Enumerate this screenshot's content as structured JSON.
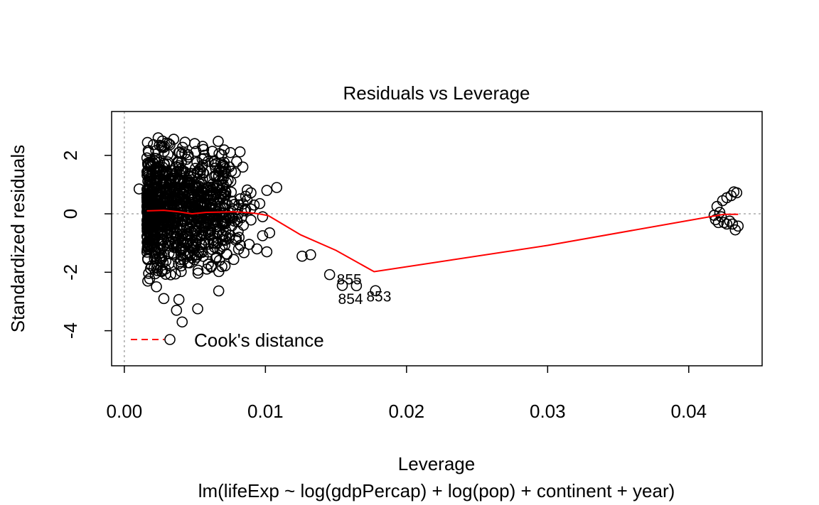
{
  "chart_data": {
    "type": "scatter",
    "title": "Residuals vs Leverage",
    "xlabel": "Leverage",
    "subtitle": "lm(lifeExp ~ log(gdpPercap) + log(pop) + continent + year)",
    "ylabel": "Standardized residuals",
    "xlim": [
      -0.0009,
      0.0452
    ],
    "ylim": [
      -5.2,
      3.5
    ],
    "x_ticks": [
      "0.00",
      "0.01",
      "0.02",
      "0.03",
      "0.04"
    ],
    "x_tick_values": [
      0,
      0.01,
      0.02,
      0.03,
      0.04
    ],
    "y_ticks": [
      "-4",
      "-2",
      "0",
      "2"
    ],
    "y_tick_values": [
      -4,
      -2,
      0,
      2
    ],
    "reference_lines": {
      "h": 0,
      "v": 0,
      "color": "#a8a8a8",
      "style": "dotted"
    },
    "smoother": {
      "color": "#ff0000",
      "x": [
        0.0016,
        0.0028,
        0.0038,
        0.0048,
        0.0058,
        0.0068,
        0.0078,
        0.0088,
        0.0095,
        0.0102,
        0.0125,
        0.015,
        0.0177,
        0.03,
        0.0415,
        0.0425,
        0.0435
      ],
      "y": [
        0.1,
        0.12,
        0.07,
        0.0,
        0.05,
        0.06,
        0.07,
        0.04,
        0.0,
        -0.06,
        -0.72,
        -1.25,
        -1.98,
        -1.08,
        -0.1,
        -0.02,
        -0.02
      ]
    },
    "labeled_points": [
      {
        "label": "855",
        "x": 0.01455,
        "y": -2.08
      },
      {
        "label": "854",
        "x": 0.01545,
        "y": -2.45
      },
      {
        "label": "853",
        "x": 0.01645,
        "y": -2.46
      }
    ],
    "extra_points": [
      {
        "x": 0.00105,
        "y": 0.85
      },
      {
        "x": 0.0101,
        "y": 0.8
      },
      {
        "x": 0.0108,
        "y": 0.9
      },
      {
        "x": 0.0092,
        "y": 0.3
      },
      {
        "x": 0.0096,
        "y": 0.35
      },
      {
        "x": 0.0098,
        "y": -0.1
      },
      {
        "x": 0.0103,
        "y": -0.65
      },
      {
        "x": 0.0098,
        "y": -0.75
      },
      {
        "x": 0.0094,
        "y": -1.2
      },
      {
        "x": 0.0101,
        "y": -1.3
      },
      {
        "x": 0.0126,
        "y": -1.45
      },
      {
        "x": 0.0132,
        "y": -1.4
      },
      {
        "x": 0.0178,
        "y": -2.63
      },
      {
        "x": 0.0082,
        "y": 2.12
      },
      {
        "x": 0.0084,
        "y": 1.6
      },
      {
        "x": 0.0086,
        "y": 0.6
      },
      {
        "x": 0.0024,
        "y": 2.6
      },
      {
        "x": 0.0041,
        "y": -3.7
      },
      {
        "x": 0.0037,
        "y": -3.3
      },
      {
        "x": 0.0052,
        "y": -3.25
      },
      {
        "x": 0.0028,
        "y": -2.9
      },
      {
        "x": 0.0043,
        "y": 2.45
      },
      {
        "x": 0.0035,
        "y": 2.55
      },
      {
        "x": 0.042,
        "y": 0.25
      },
      {
        "x": 0.0424,
        "y": 0.45
      },
      {
        "x": 0.0427,
        "y": 0.55
      },
      {
        "x": 0.043,
        "y": 0.62
      },
      {
        "x": 0.0432,
        "y": 0.75
      },
      {
        "x": 0.0434,
        "y": 0.72
      },
      {
        "x": 0.0418,
        "y": -0.05
      },
      {
        "x": 0.0419,
        "y": -0.2
      },
      {
        "x": 0.0421,
        "y": -0.3
      },
      {
        "x": 0.0423,
        "y": -0.1
      },
      {
        "x": 0.0425,
        "y": -0.3
      },
      {
        "x": 0.0427,
        "y": -0.35
      },
      {
        "x": 0.0429,
        "y": -0.25
      },
      {
        "x": 0.0431,
        "y": -0.35
      },
      {
        "x": 0.0433,
        "y": -0.55
      },
      {
        "x": 0.0435,
        "y": -0.42
      },
      {
        "x": 0.0422,
        "y": 0.05
      }
    ],
    "cloud": [
      {
        "x_min": 0.0016,
        "x_max": 0.0072,
        "y_mean": 0.1,
        "y_sd": 1.05,
        "n": 900
      },
      {
        "x_min": 0.007,
        "x_max": 0.009,
        "y_mean": 0.2,
        "y_sd": 0.85,
        "n": 60
      }
    ],
    "legend": {
      "position": "bottomleft",
      "entries": [
        {
          "label": "Cook's distance",
          "color": "#ff0000",
          "line": "dashed",
          "marker": "circle"
        }
      ]
    },
    "grid": false
  }
}
